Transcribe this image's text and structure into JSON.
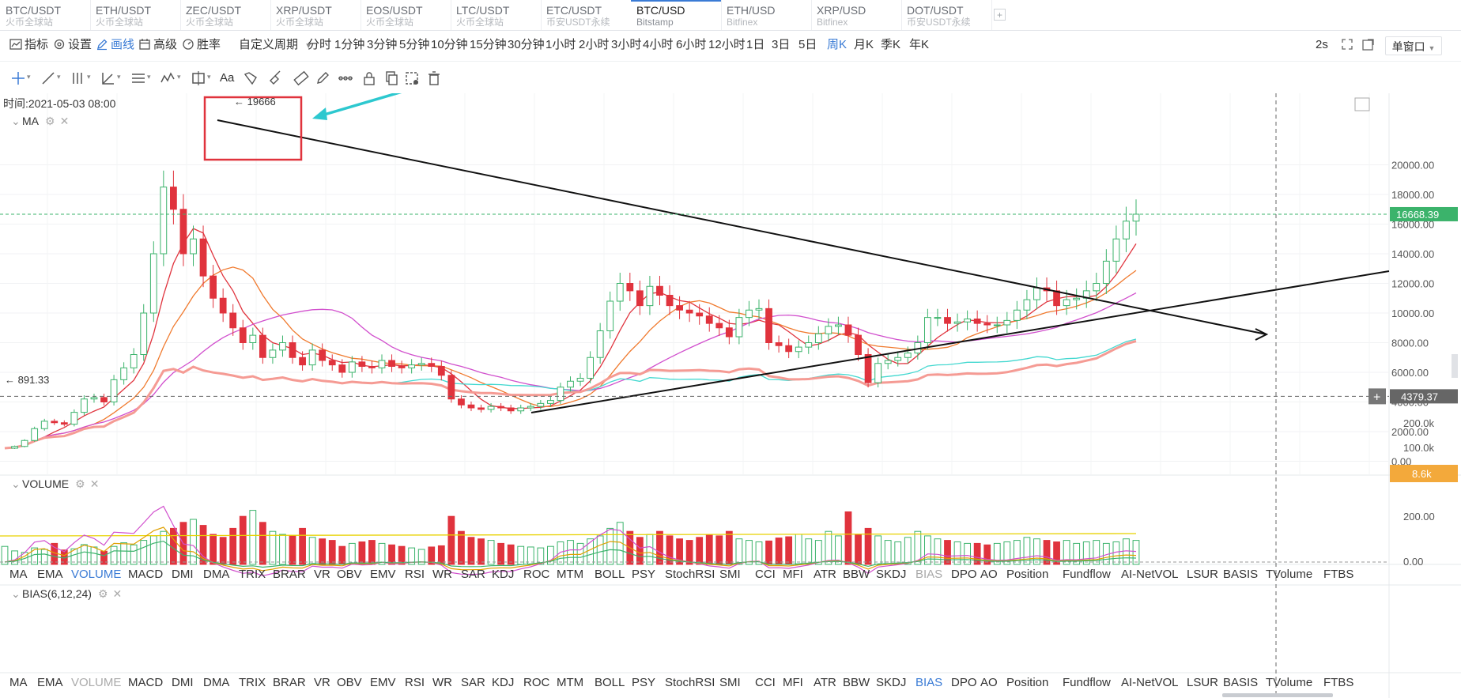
{
  "tabs": [
    {
      "pair": "BTC/USDT",
      "source": "火币全球站",
      "active": false
    },
    {
      "pair": "ETH/USDT",
      "source": "火币全球站",
      "active": false
    },
    {
      "pair": "ZEC/USDT",
      "source": "火币全球站",
      "active": false
    },
    {
      "pair": "XRP/USDT",
      "source": "火币全球站",
      "active": false
    },
    {
      "pair": "EOS/USDT",
      "source": "火币全球站",
      "active": false
    },
    {
      "pair": "LTC/USDT",
      "source": "火币全球站",
      "active": false
    },
    {
      "pair": "ETC/USDT",
      "source": "币安USDT永续",
      "active": false
    },
    {
      "pair": "BTC/USD",
      "source": "Bitstamp",
      "active": true
    },
    {
      "pair": "ETH/USD",
      "source": "Bitfinex",
      "active": false
    },
    {
      "pair": "XRP/USD",
      "source": "Bitfinex",
      "active": false
    },
    {
      "pair": "DOT/USDT",
      "source": "币安USDT永续",
      "active": false
    }
  ],
  "tab_add": "+",
  "toolbar": {
    "indicator": "指标",
    "settings": "设置",
    "draw": "画线",
    "advanced": "高级",
    "winrate": "胜率",
    "custom_period": "自定义周期"
  },
  "periods": [
    "分时",
    "1分钟",
    "3分钟",
    "5分钟",
    "10分钟",
    "15分钟",
    "30分钟",
    "1小时",
    "2小时",
    "3小时",
    "4小时",
    "6小时",
    "12小时",
    "1日",
    "3日",
    "5日",
    "周K",
    "月K",
    "季K",
    "年K"
  ],
  "active_period": "周K",
  "refresh_interval": "2s",
  "window_mode": "单窗口",
  "draw_tools": [
    "crosshair-icon",
    "trend-line-icon",
    "parallel-channel-icon",
    "angle-icon",
    "horizontal-lines-icon",
    "wave-icon",
    "rectangle-icon",
    "text-icon",
    "fibonacci-icon",
    "brush-icon",
    "ruler-icon",
    "pencil-icon",
    "pattern-icon",
    "lock-icon",
    "copy-icon",
    "magnet-icon",
    "trash-icon"
  ],
  "draw_text_label": "Aa",
  "time_label": "时间:2021-05-03 08:00",
  "main_panel": {
    "title": "MA"
  },
  "volume_panel": {
    "title": "VOLUME"
  },
  "bias_panel": {
    "title": "BIAS(6,12,24)"
  },
  "indicator_tabs": [
    "MA",
    "EMA",
    "VOLUME",
    "MACD",
    "DMI",
    "DMA",
    "TRIX",
    "BRAR",
    "VR",
    "OBV",
    "EMV",
    "RSI",
    "WR",
    "SAR",
    "KDJ",
    "ROC",
    "MTM",
    "BOLL",
    "PSY",
    "StochRSI",
    "SMI",
    "CCI",
    "MFI",
    "ATR",
    "BBW",
    "SKDJ",
    "BIAS",
    "DPO",
    "AO",
    "Position",
    "Fundflow",
    "AI-NetVOL",
    "LSUR",
    "BASIS",
    "TVolume",
    "FTBS"
  ],
  "indicator_row1_selected": "VOLUME",
  "indicator_row1_dim": "BIAS",
  "indicator_row2_selected": "BIAS",
  "indicator_row2_dim": "VOLUME",
  "chart_data": {
    "type": "candlestick",
    "price_axis_ticks": [
      "20000.00",
      "18000.00",
      "16000.00",
      "14000.00",
      "12000.00",
      "10000.00",
      "8000.00",
      "6000.00",
      "4000.00",
      "2000.00",
      "0.00"
    ],
    "price_ylim": [
      0,
      20000
    ],
    "volume_axis_ticks": [
      "200.0k",
      "100.0k"
    ],
    "bias_axis_ticks": [
      "200.00",
      "0.00"
    ],
    "last_price_label": "16668.39",
    "crosshair_price_label": "4379.37",
    "volume_value_label": "8.6k",
    "high_annotation": "19666",
    "low_annotation": "891.33",
    "crosshair_add_button": "+",
    "price_path": [
      880,
      1000,
      1400,
      2200,
      2700,
      2600,
      2500,
      3300,
      4200,
      4300,
      4000,
      5500,
      6300,
      7200,
      10000,
      14000,
      18500,
      17000,
      14000,
      15000,
      12500,
      11000,
      10000,
      9000,
      8000,
      8500,
      7000,
      7500,
      8000,
      7000,
      6500,
      7500,
      6800,
      6500,
      6000,
      6700,
      6400,
      6300,
      6800,
      6400,
      6300,
      6500,
      6600,
      6400,
      5800,
      4200,
      3800,
      3600,
      3500,
      3700,
      3600,
      3400,
      3600,
      3700,
      3900,
      4100,
      5000,
      5400,
      5600,
      7000,
      8800,
      10800,
      12000,
      11500,
      10500,
      11800,
      11200,
      10500,
      10200,
      10000,
      9800,
      9300,
      9000,
      8400,
      9700,
      10200,
      10300,
      8000,
      7800,
      7400,
      7700,
      8000,
      8600,
      9100,
      9200,
      8500,
      7200,
      5300,
      6600,
      6800,
      7000,
      7300,
      8000,
      9700,
      9700,
      9300,
      9400,
      9600,
      9300,
      9200,
      9200,
      9500,
      10200,
      10900,
      11700,
      11500,
      10500,
      10900,
      11000,
      11500,
      12000,
      13500,
      15000,
      16200,
      16668
    ],
    "ma_series": [
      {
        "color": "#e0333d"
      },
      {
        "color": "#f07a2e"
      },
      {
        "color": "#d14fcd"
      },
      {
        "color": "#43d8d0"
      },
      {
        "color": "#f59b94"
      }
    ],
    "volume_values": [
      60,
      45,
      40,
      55,
      50,
      70,
      48,
      52,
      66,
      58,
      44,
      60,
      72,
      65,
      80,
      95,
      110,
      120,
      140,
      150,
      130,
      100,
      90,
      120,
      160,
      180,
      140,
      110,
      100,
      95,
      120,
      90,
      85,
      80,
      60,
      70,
      75,
      80,
      70,
      65,
      60,
      55,
      50,
      58,
      62,
      160,
      110,
      90,
      85,
      80,
      70,
      65,
      60,
      58,
      55,
      60,
      75,
      80,
      70,
      85,
      95,
      120,
      140,
      110,
      90,
      100,
      110,
      95,
      85,
      80,
      90,
      100,
      95,
      110,
      85,
      80,
      75,
      78,
      88,
      92,
      100,
      85,
      80,
      110,
      95,
      175,
      100,
      120,
      95,
      80,
      75,
      90,
      110,
      95,
      85,
      80,
      75,
      70,
      70,
      65,
      70,
      75,
      80,
      90,
      85,
      80,
      75,
      80,
      70,
      75,
      80,
      70,
      75,
      85,
      80
    ]
  }
}
